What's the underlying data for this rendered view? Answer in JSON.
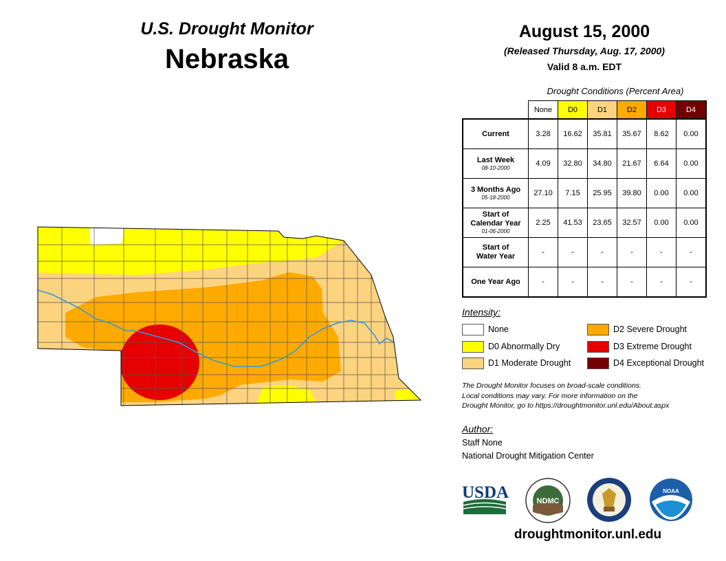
{
  "header": {
    "subtitle": "U.S. Drought Monitor",
    "state": "Nebraska",
    "date": "August 15, 2000",
    "released": "(Released Thursday, Aug. 17, 2000)",
    "valid": "Valid 8 a.m. EDT"
  },
  "table": {
    "caption": "Drought Conditions (Percent Area)",
    "columns": [
      {
        "label": "None",
        "color": "#ffffff",
        "text_color": "#000000"
      },
      {
        "label": "D0",
        "color": "#ffff00",
        "text_color": "#000000"
      },
      {
        "label": "D1",
        "color": "#fcd37f",
        "text_color": "#000000"
      },
      {
        "label": "D2",
        "color": "#ffaa00",
        "text_color": "#000000"
      },
      {
        "label": "D3",
        "color": "#e60000",
        "text_color": "#ffffff"
      },
      {
        "label": "D4",
        "color": "#730000",
        "text_color": "#ffffff"
      }
    ],
    "rows": [
      {
        "label": "Current",
        "label2": "",
        "date": "",
        "values": [
          "3.28",
          "16.62",
          "35.81",
          "35.67",
          "8.62",
          "0.00"
        ]
      },
      {
        "label": "Last Week",
        "label2": "",
        "date": "08-10-2000",
        "values": [
          "4.09",
          "32.80",
          "34.80",
          "21.67",
          "6.64",
          "0.00"
        ]
      },
      {
        "label": "3 Months Ago",
        "label2": "",
        "date": "05-18-2000",
        "values": [
          "27.10",
          "7.15",
          "25.95",
          "39.80",
          "0.00",
          "0.00"
        ]
      },
      {
        "label": "Start of",
        "label2": "Calendar Year",
        "date": "01-06-2000",
        "values": [
          "2.25",
          "41.53",
          "23.65",
          "32.57",
          "0.00",
          "0.00"
        ]
      },
      {
        "label": "Start of",
        "label2": "Water Year",
        "date": "",
        "values": [
          "-",
          "-",
          "-",
          "-",
          "-",
          "-"
        ]
      },
      {
        "label": "One Year Ago",
        "label2": "",
        "date": "",
        "values": [
          "-",
          "-",
          "-",
          "-",
          "-",
          "-"
        ]
      }
    ]
  },
  "legend": {
    "title": "Intensity:",
    "items": [
      {
        "label": "None",
        "color": "#ffffff"
      },
      {
        "label": "D0 Abnormally Dry",
        "color": "#ffff00"
      },
      {
        "label": "D1 Moderate Drought",
        "color": "#fcd37f"
      },
      {
        "label": "D2 Severe Drought",
        "color": "#ffaa00"
      },
      {
        "label": "D3 Extreme Drought",
        "color": "#e60000"
      },
      {
        "label": "D4 Exceptional Drought",
        "color": "#730000"
      }
    ]
  },
  "note": [
    "The Drought Monitor focuses on broad-scale conditions.",
    "Local conditions may vary. For more information on the",
    "Drought Monitor, go to https://droughtmonitor.unl.edu/About.aspx"
  ],
  "author": {
    "title": "Author:",
    "name": "Staff None",
    "org": "National Drought Mitigation Center"
  },
  "logos": {
    "usda": "USDA",
    "ndmc": "NDMC",
    "noaa": "NOAA"
  },
  "map": {
    "river_color": "#3399dd",
    "county_line_color": "#555555"
  },
  "footer": {
    "url": "droughtmonitor.unl.edu"
  }
}
